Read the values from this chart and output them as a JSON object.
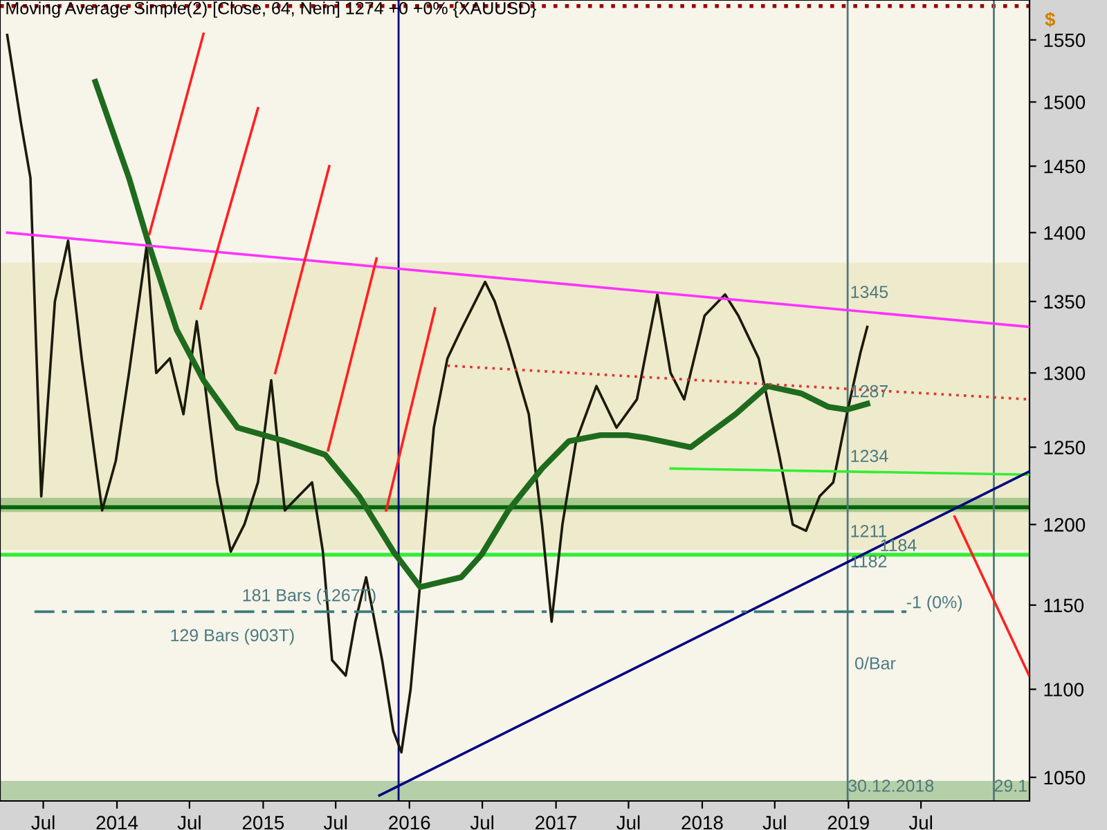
{
  "chart_data": {
    "type": "line",
    "title": "Moving Average Simple(2) [Close, 64, Nein] 1274 +0 +0% {XAUUSD}",
    "ylabel": "$",
    "log": "y",
    "xlim": [
      "2013-03-15",
      "2020-03-28"
    ],
    "ylim": [
      1037,
      1583
    ],
    "yticks": [
      1050,
      1100,
      1150,
      1200,
      1250,
      1300,
      1350,
      1400,
      1450,
      1500,
      1550
    ],
    "xticks": [
      {
        "value": "2013-07-01",
        "label": "Jul"
      },
      {
        "value": "2014-01-01",
        "label": "2014"
      },
      {
        "value": "2014-07-01",
        "label": "Jul"
      },
      {
        "value": "2015-01-01",
        "label": "2015"
      },
      {
        "value": "2015-07-01",
        "label": "Jul"
      },
      {
        "value": "2016-01-01",
        "label": "2016"
      },
      {
        "value": "2016-07-01",
        "label": "Jul"
      },
      {
        "value": "2017-01-01",
        "label": "2017"
      },
      {
        "value": "2017-07-01",
        "label": "Jul"
      },
      {
        "value": "2018-01-01",
        "label": "2018"
      },
      {
        "value": "2018-07-01",
        "label": "Jul"
      },
      {
        "value": "2019-01-01",
        "label": "2019"
      },
      {
        "value": "2019-07-01",
        "label": "Jul"
      }
    ],
    "grid": false,
    "legend": false,
    "bands": [
      {
        "axis": "y",
        "from": 1184,
        "to": 1378,
        "color": "#eeeacc"
      },
      {
        "axis": "y",
        "from": 1037,
        "to": 1048,
        "color": "#b5cfa8"
      },
      {
        "axis": "y",
        "from": 1208,
        "to": 1217,
        "color": "#a8c890"
      }
    ],
    "ref_lines": [
      {
        "axis": "y",
        "value": 1211,
        "color": "#006400",
        "line_style": "solid"
      },
      {
        "axis": "y",
        "value": 1181,
        "color": "#33ee33",
        "line_style": "solid"
      },
      {
        "axis": "y",
        "value": 1578,
        "color": "#990000",
        "line_style": "dotted"
      },
      {
        "axis": "x",
        "value": "2015-12-05",
        "color": "#000080",
        "line_style": "solid"
      },
      {
        "axis": "x",
        "value": "2018-12-30",
        "label": "30.12.2018",
        "color": "#507878",
        "line_style": "solid"
      },
      {
        "axis": "x",
        "value": "2019-12-30",
        "label": "29.1",
        "color": "#507878",
        "line_style": "solid"
      }
    ],
    "annotations": [
      {
        "text": "1345",
        "x": "2019-01-05",
        "y": 1350
      },
      {
        "text": "1287",
        "x": "2019-01-05",
        "y": 1292
      },
      {
        "text": "1234",
        "x": "2019-01-05",
        "y": 1238
      },
      {
        "text": "1211",
        "x": "2019-01-05",
        "y": 1200
      },
      {
        "text": "1184",
        "x": "2019-03-20",
        "y": 1181
      },
      {
        "text": "1182",
        "x": "2019-01-05",
        "y": 1181
      },
      "129 Bars (903T)",
      "181 Bars (1267T)",
      {
        "text": "-1 (0%)",
        "x": "2019-05-25",
        "y": 1146
      },
      "0/Bar"
    ],
    "series": [
      {
        "type": "line",
        "color": "#1a1a0a",
        "x": [
          "2013-04-02",
          "2013-05-06",
          "2013-05-30",
          "2013-06-26",
          "2013-07-30",
          "2013-09-01",
          "2013-10-05",
          "2013-11-25",
          "2013-12-29",
          "2014-01-31",
          "2014-03-16",
          "2014-04-09",
          "2014-05-13",
          "2014-06-16",
          "2014-07-19",
          "2014-08-05",
          "2014-09-08",
          "2014-10-12",
          "2014-11-15",
          "2014-12-19",
          "2015-01-21",
          "2015-02-24",
          "2015-03-30",
          "2015-05-03",
          "2015-05-30",
          "2015-06-22",
          "2015-07-26",
          "2015-08-19",
          "2015-09-15",
          "2015-10-25",
          "2015-11-22",
          "2015-12-12",
          "2016-01-04",
          "2016-02-04",
          "2016-03-02",
          "2016-04-05",
          "2016-05-09",
          "2016-07-08",
          "2016-08-01",
          "2016-09-04",
          "2016-10-25",
          "2016-11-27",
          "2016-12-21",
          "2017-01-17",
          "2017-02-20",
          "2017-04-12",
          "2017-06-01",
          "2017-07-22",
          "2017-09-11",
          "2017-10-14",
          "2017-11-17",
          "2018-01-07",
          "2018-02-27",
          "2018-04-01",
          "2018-05-22",
          "2018-07-12",
          "2018-08-15",
          "2018-09-17",
          "2018-10-21",
          "2018-11-24",
          "2018-12-28",
          "2019-01-31",
          "2019-02-17"
        ],
        "values": [
          1554,
          1484,
          1441,
          1218,
          1350,
          1394,
          1310,
          1209,
          1241,
          1300,
          1390,
          1300,
          1310,
          1272,
          1336,
          1300,
          1227,
          1183,
          1200,
          1227,
          1295,
          1209,
          1218,
          1227,
          1183,
          1117,
          1108,
          1140,
          1167,
          1117,
          1076,
          1064,
          1100,
          1183,
          1263,
          1310,
          1330,
          1364,
          1350,
          1320,
          1272,
          1200,
          1140,
          1200,
          1254,
          1291,
          1263,
          1282,
          1355,
          1300,
          1282,
          1340,
          1355,
          1340,
          1310,
          1245,
          1200,
          1196,
          1218,
          1227,
          1272,
          1314,
          1332
        ]
      },
      {
        "color": "#1e6b1e",
        "x": [
          "2013-11-08",
          "2014-01-31",
          "2014-03-23",
          "2014-05-30",
          "2014-08-05",
          "2014-10-29",
          "2015-02-24",
          "2015-06-05",
          "2015-08-29",
          "2015-11-22",
          "2016-01-28",
          "2016-03-18",
          "2016-05-09",
          "2016-06-29",
          "2016-09-04",
          "2016-11-27",
          "2017-02-02",
          "2017-04-22",
          "2017-06-28",
          "2017-08-17",
          "2017-12-03",
          "2018-03-25",
          "2018-06-13",
          "2018-09-05",
          "2018-11-11",
          "2018-12-28",
          "2019-02-17"
        ],
        "values": [
          1516,
          1441,
          1390,
          1330,
          1295,
          1263,
          1254,
          1245,
          1218,
          1183,
          1161,
          1164,
          1167,
          1181,
          1209,
          1236,
          1254,
          1258,
          1258,
          1256,
          1250,
          1272,
          1291,
          1286,
          1277,
          1275,
          1279
        ]
      },
      {
        "type": "line",
        "color": "#ff33ff",
        "x": [
          "2013-04-02",
          "2020-03-27"
        ],
        "values": [
          1400,
          1332
        ]
      },
      {
        "type": "line",
        "color": "#dd3333",
        "line_style": "dotted",
        "x": [
          "2016-04-05",
          "2020-03-27"
        ],
        "values": [
          1305,
          1282
        ]
      },
      {
        "type": "line",
        "color": "#33ee33",
        "x": [
          "2017-10-14",
          "2020-03-27"
        ],
        "values": [
          1236,
          1232
        ]
      },
      {
        "type": "line",
        "color": "#000080",
        "x": [
          "2015-10-18",
          "2020-03-27"
        ],
        "values": [
          1040,
          1234
        ]
      },
      {
        "type": "line",
        "color": "#3a7a7a",
        "line_style": "dashed",
        "x": [
          "2013-06-09",
          "2019-05-29"
        ],
        "values": [
          1146,
          1146
        ]
      },
      {
        "type": "line",
        "color": "#ff2020",
        "x": [
          "2014-08-05",
          "2014-03-23"
        ],
        "values": [
          1555,
          1399
        ]
      },
      {
        "type": "line",
        "color": "#ff2020",
        "x": [
          "2014-12-19",
          "2014-07-29"
        ],
        "values": [
          1495,
          1345
        ]
      },
      {
        "type": "line",
        "color": "#ff2020",
        "x": [
          "2015-06-15",
          "2015-01-31"
        ],
        "values": [
          1450,
          1300
        ]
      },
      {
        "type": "line",
        "color": "#ff2020",
        "x": [
          "2015-10-11",
          "2015-06-12"
        ],
        "values": [
          1381,
          1248
        ]
      },
      {
        "type": "line",
        "color": "#ff2020",
        "x": [
          "2016-03-05",
          "2015-11-04"
        ],
        "values": [
          1345,
          1209
        ]
      },
      {
        "type": "line",
        "color": "#ff2020",
        "x": [
          "2019-09-23",
          "2020-03-27"
        ],
        "values": [
          1205,
          1108
        ]
      }
    ]
  }
}
